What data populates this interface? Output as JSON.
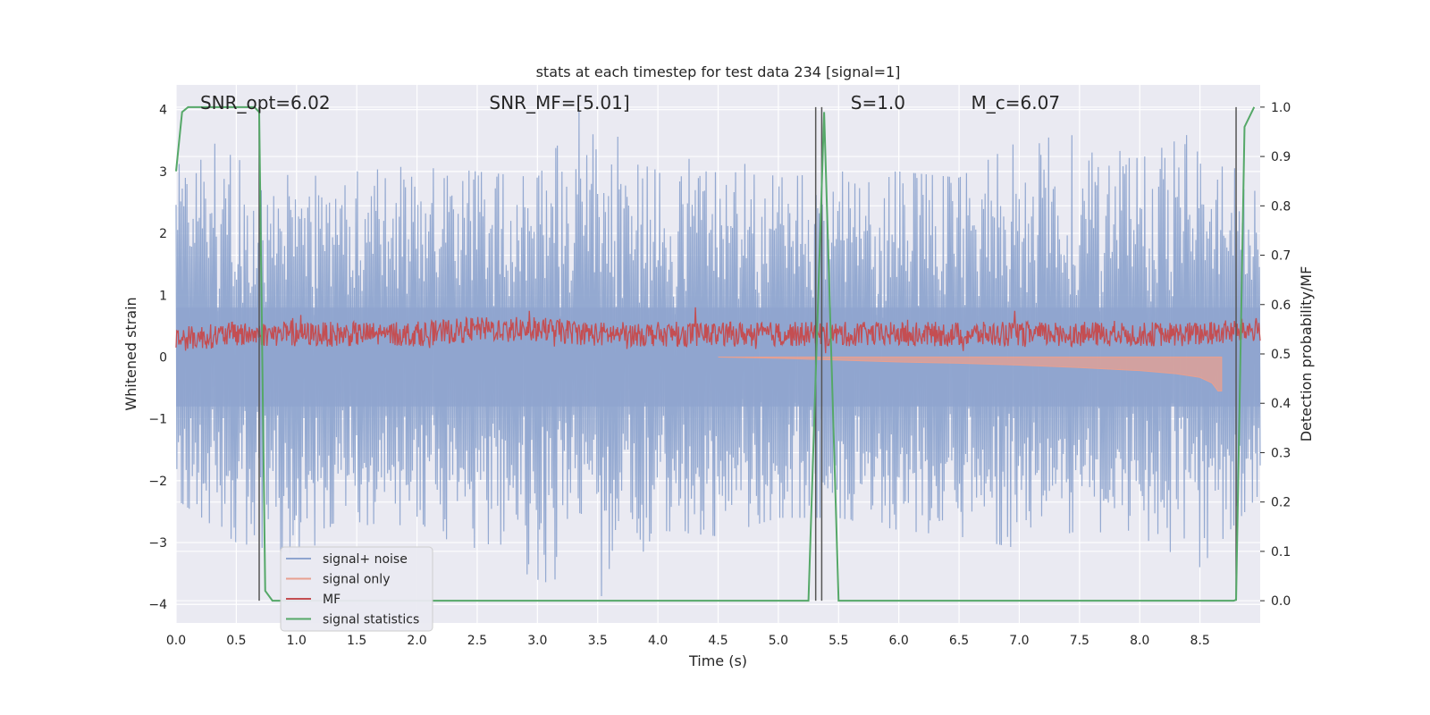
{
  "chart_data": {
    "type": "line",
    "title": "stats at each timestep for test data 234 [signal=1]",
    "xlabel": "Time (s)",
    "ylabel": "Whitened strain",
    "y2label": "Detection probability/MF",
    "xlim": [
      0.0,
      9.0
    ],
    "ylim": [
      -4.3,
      4.4
    ],
    "y2lim": [
      -0.045,
      1.045
    ],
    "x_ticks": [
      0.0,
      0.5,
      1.0,
      1.5,
      2.0,
      2.5,
      3.0,
      3.5,
      4.0,
      4.5,
      5.0,
      5.5,
      6.0,
      6.5,
      7.0,
      7.5,
      8.0,
      8.5
    ],
    "x_tick_labels": [
      "0.0",
      "0.5",
      "1.0",
      "1.5",
      "2.0",
      "2.5",
      "3.0",
      "3.5",
      "4.0",
      "4.5",
      "5.0",
      "5.5",
      "6.0",
      "6.5",
      "7.0",
      "7.5",
      "8.0",
      "8.5"
    ],
    "y_ticks": [
      -4,
      -3,
      -2,
      -1,
      0,
      1,
      2,
      3,
      4
    ],
    "y_tick_labels": [
      "−4",
      "−3",
      "−2",
      "−1",
      "0",
      "1",
      "2",
      "3",
      "4"
    ],
    "y2_ticks": [
      0.0,
      0.1,
      0.2,
      0.3,
      0.4,
      0.5,
      0.6,
      0.7,
      0.8,
      0.9,
      1.0
    ],
    "y2_tick_labels": [
      "0.0",
      "0.1",
      "0.2",
      "0.3",
      "0.4",
      "0.5",
      "0.6",
      "0.7",
      "0.8",
      "0.9",
      "1.0"
    ],
    "grid": true,
    "legend_position": "lower-left",
    "annotations": [
      {
        "text": "SNR_opt=6.02",
        "x": 0.2,
        "y": 4.1
      },
      {
        "text": "SNR_MF=[5.01]",
        "x": 2.6,
        "y": 4.1
      },
      {
        "text": "S=1.0",
        "x": 5.6,
        "y": 4.1
      },
      {
        "text": "M_c=6.07",
        "x": 6.6,
        "y": 4.1
      }
    ],
    "series": [
      {
        "name": "signal+ noise",
        "color": "#8fa5cf",
        "axis": "left",
        "style": "noise band, approx. ±1.5 typical, peaks to ±4",
        "envelope_points": [
          [
            0.0,
            3.9
          ],
          [
            0.5,
            3.2
          ],
          [
            1.0,
            2.9
          ],
          [
            1.5,
            3.0
          ],
          [
            2.0,
            3.1
          ],
          [
            2.5,
            3.0
          ],
          [
            3.0,
            2.9
          ],
          [
            3.35,
            4.0
          ],
          [
            4.0,
            3.1
          ],
          [
            4.5,
            3.3
          ],
          [
            5.0,
            2.9
          ],
          [
            5.5,
            3.0
          ],
          [
            6.0,
            3.0
          ],
          [
            6.5,
            2.9
          ],
          [
            7.0,
            3.5
          ],
          [
            7.5,
            3.6
          ],
          [
            8.0,
            3.2
          ],
          [
            8.5,
            3.7
          ],
          [
            9.0,
            3.1
          ]
        ],
        "lower_envelope_points": [
          [
            0.0,
            -2.3
          ],
          [
            0.5,
            -3.0
          ],
          [
            1.0,
            -3.2
          ],
          [
            1.5,
            -2.7
          ],
          [
            2.0,
            -2.8
          ],
          [
            2.5,
            -3.1
          ],
          [
            3.0,
            -3.6
          ],
          [
            3.6,
            -3.95
          ],
          [
            4.0,
            -2.8
          ],
          [
            4.5,
            -2.9
          ],
          [
            5.0,
            -2.6
          ],
          [
            5.5,
            -2.6
          ],
          [
            6.0,
            -2.8
          ],
          [
            6.5,
            -2.9
          ],
          [
            7.0,
            -3.1
          ],
          [
            7.5,
            -2.8
          ],
          [
            8.0,
            -2.9
          ],
          [
            8.5,
            -3.4
          ],
          [
            9.0,
            -2.2
          ]
        ]
      },
      {
        "name": "signal only",
        "color": "#e8a090",
        "axis": "left",
        "style": "chirp growing from t≈4.5 to t≈8.65",
        "points": [
          [
            4.5,
            0.0
          ],
          [
            5.0,
            -0.02
          ],
          [
            5.5,
            -0.05
          ],
          [
            6.0,
            -0.08
          ],
          [
            6.5,
            -0.1
          ],
          [
            7.0,
            -0.13
          ],
          [
            7.5,
            -0.17
          ],
          [
            8.0,
            -0.22
          ],
          [
            8.3,
            -0.27
          ],
          [
            8.5,
            -0.33
          ],
          [
            8.6,
            -0.42
          ],
          [
            8.65,
            -0.55
          ],
          [
            8.68,
            -0.55
          ]
        ]
      },
      {
        "name": "MF",
        "color": "#c44e52",
        "axis": "right",
        "style": "noisy band approx. 0.5–0.6",
        "points": [
          [
            0.0,
            0.53
          ],
          [
            0.5,
            0.54
          ],
          [
            1.0,
            0.54
          ],
          [
            1.5,
            0.54
          ],
          [
            2.0,
            0.54
          ],
          [
            2.5,
            0.55
          ],
          [
            3.0,
            0.55
          ],
          [
            3.5,
            0.54
          ],
          [
            4.0,
            0.54
          ],
          [
            4.5,
            0.54
          ],
          [
            5.0,
            0.54
          ],
          [
            5.5,
            0.54
          ],
          [
            6.0,
            0.54
          ],
          [
            6.5,
            0.54
          ],
          [
            7.0,
            0.54
          ],
          [
            7.5,
            0.54
          ],
          [
            8.0,
            0.54
          ],
          [
            8.5,
            0.54
          ],
          [
            9.0,
            0.55
          ]
        ]
      },
      {
        "name": "signal statistics",
        "color": "#55a868",
        "axis": "right",
        "points": [
          [
            0.0,
            0.87
          ],
          [
            0.05,
            0.99
          ],
          [
            0.1,
            1.0
          ],
          [
            0.65,
            1.0
          ],
          [
            0.69,
            0.99
          ],
          [
            0.74,
            0.02
          ],
          [
            0.8,
            0.0
          ],
          [
            5.25,
            0.0
          ],
          [
            5.38,
            0.99
          ],
          [
            5.5,
            0.0
          ],
          [
            8.78,
            0.0
          ],
          [
            8.8,
            0.002
          ],
          [
            8.87,
            0.96
          ],
          [
            8.95,
            1.0
          ]
        ]
      }
    ],
    "vertical_markers": [
      0.69,
      5.31,
      5.36,
      8.8
    ]
  }
}
